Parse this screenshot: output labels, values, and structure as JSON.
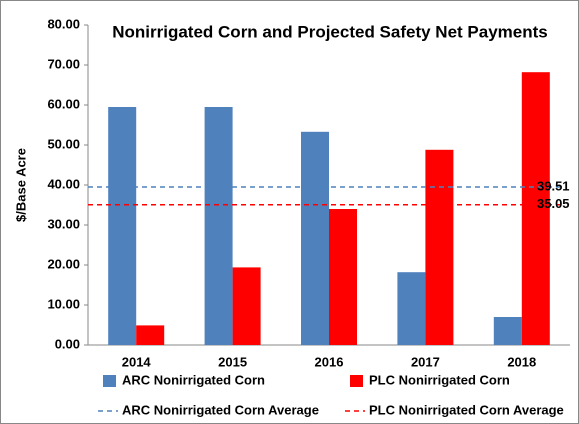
{
  "chart_data": {
    "type": "bar",
    "title": "Nonirrigated Corn and Projected Safety Net Payments",
    "y_label": "$/Base Acre",
    "categories": [
      "2014",
      "2015",
      "2016",
      "2017",
      "2018"
    ],
    "series": [
      {
        "name": "ARC Nonirrigated Corn",
        "color": "#4f81bd",
        "values": [
          59.5,
          59.5,
          53.3,
          18.2,
          7.0
        ]
      },
      {
        "name": "PLC Nonirrigated Corn",
        "color": "#ff0000",
        "values": [
          4.9,
          19.4,
          34.0,
          48.8,
          68.2
        ]
      }
    ],
    "reference_lines": [
      {
        "name": "ARC Nonirrigated Corn Average",
        "color": "#4f81bd",
        "value": 39.51
      },
      {
        "name": "PLC Nonirrigated Corn Average",
        "color": "#ff0000",
        "value": 35.05
      }
    ],
    "ylim": [
      0,
      80
    ],
    "yticks": [
      {
        "value": 0,
        "label": "0.00"
      },
      {
        "value": 10,
        "label": "10.00"
      },
      {
        "value": 20,
        "label": "20.00"
      },
      {
        "value": 30,
        "label": "30.00"
      },
      {
        "value": 40,
        "label": "40.00"
      },
      {
        "value": 50,
        "label": "50.00"
      },
      {
        "value": 60,
        "label": "60.00"
      },
      {
        "value": 70,
        "label": "70.00"
      },
      {
        "value": 80,
        "label": "80.00"
      }
    ],
    "grid": false
  }
}
